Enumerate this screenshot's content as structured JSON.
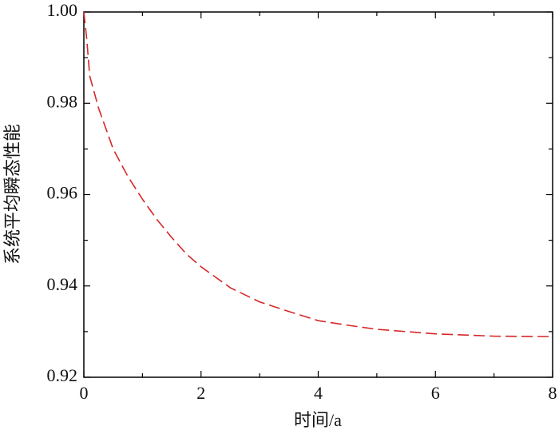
{
  "chart_data": {
    "type": "line",
    "x_label": "时间/a",
    "y_label": "系统平均瞬态性能",
    "x": [
      0,
      0.05,
      0.1,
      0.25,
      0.5,
      0.75,
      1,
      1.25,
      1.5,
      1.75,
      2,
      2.5,
      3,
      3.5,
      4,
      4.5,
      5,
      5.5,
      6,
      7,
      8
    ],
    "series": [
      {
        "color": "#d62728",
        "dashed": true,
        "values": [
          1.0,
          0.994,
          0.986,
          0.979,
          0.97,
          0.964,
          0.959,
          0.9545,
          0.9506,
          0.947,
          0.9442,
          0.9396,
          0.9365,
          0.9344,
          0.9324,
          0.9314,
          0.9305,
          0.93,
          0.9295,
          0.929,
          0.9289
        ]
      }
    ],
    "xlim": [
      0,
      8
    ],
    "ylim": [
      0.92,
      1.0
    ],
    "xticks": [
      0,
      2,
      4,
      6,
      8
    ],
    "yticks": [
      0.92,
      0.94,
      0.96,
      0.98,
      {
        "value": 1.0,
        "label": "1.00"
      }
    ],
    "xminorticks": [
      1,
      3,
      5,
      7
    ],
    "yminorticks": [
      0.93,
      0.95,
      0.97,
      0.99
    ]
  }
}
